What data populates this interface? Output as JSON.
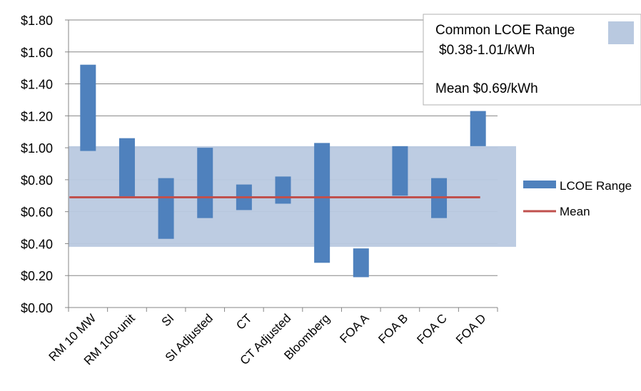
{
  "chart_data": {
    "type": "bar",
    "categories": [
      "RM 10 MW",
      "RM 100-unit",
      "SI",
      "SI Adjusted",
      "CT",
      "CT Adjusted",
      "Bloomberg",
      "FOA A",
      "FOA B",
      "FOA C",
      "FOA D"
    ],
    "series": [
      {
        "name": "LCOE Range",
        "ranges": [
          [
            0.98,
            1.52
          ],
          [
            0.69,
            1.06
          ],
          [
            0.43,
            0.81
          ],
          [
            0.56,
            1.0
          ],
          [
            0.61,
            0.77
          ],
          [
            0.65,
            0.82
          ],
          [
            0.28,
            1.03
          ],
          [
            0.19,
            0.37
          ],
          [
            0.7,
            1.01
          ],
          [
            0.56,
            0.81
          ],
          [
            1.01,
            1.23
          ]
        ],
        "color": "#4f81bd"
      },
      {
        "name": "Mean",
        "value": 0.69,
        "color": "#c0504d"
      }
    ],
    "common_range": [
      0.38,
      1.01
    ],
    "common_range_color": "#b9c9e0",
    "ylim": [
      0,
      1.8
    ],
    "yticks": [
      "$0.00",
      "$0.20",
      "$0.40",
      "$0.60",
      "$0.80",
      "$1.00",
      "$1.20",
      "$1.40",
      "$1.60",
      "$1.80"
    ],
    "grid": true,
    "legend_position": "right",
    "annotation": {
      "line1": "Common LCOE Range",
      "line2": "$0.38-1.01/kWh",
      "line3": "Mean  $0.69/kWh"
    }
  }
}
